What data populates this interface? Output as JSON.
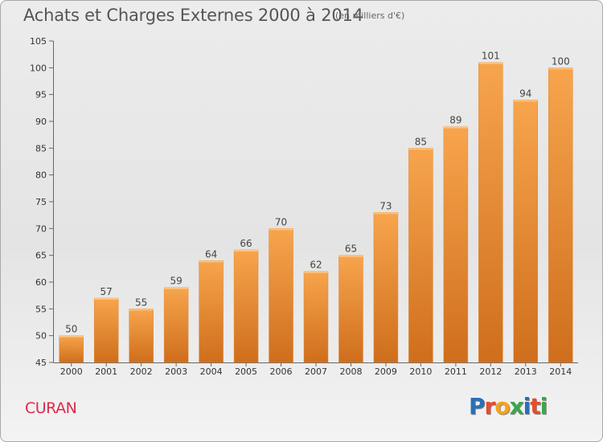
{
  "header": {
    "title": "Achats et Charges Externes 2000 à 2014",
    "unit": "(en milliers d'€)"
  },
  "commune": "CURAN",
  "logo": {
    "text": "Proxiti",
    "letters": [
      {
        "char": "P",
        "color": "#2a6fb8"
      },
      {
        "char": "r",
        "color": "#e94b2b"
      },
      {
        "char": "o",
        "color": "#f6a21a"
      },
      {
        "char": "x",
        "color": "#3aa84a"
      },
      {
        "char": "i",
        "color": "#2a6fb8"
      },
      {
        "char": "t",
        "color": "#e94b2b"
      },
      {
        "char": "i",
        "color": "#3aa84a"
      }
    ]
  },
  "colors": {
    "bar_light": "#f7a54d",
    "bar_dark": "#cf6e1c",
    "commune_text": "#e0294a"
  },
  "chart_data": {
    "type": "bar",
    "title": "Achats et Charges Externes 2000 à 2014",
    "subtitle": "(en milliers d'€)",
    "categories": [
      "2000",
      "2001",
      "2002",
      "2003",
      "2004",
      "2005",
      "2006",
      "2007",
      "2008",
      "2009",
      "2010",
      "2011",
      "2012",
      "2013",
      "2014"
    ],
    "values": [
      50,
      57,
      55,
      59,
      64,
      66,
      70,
      62,
      65,
      73,
      85,
      89,
      101,
      94,
      100
    ],
    "ylim": [
      45,
      105
    ],
    "yticks": [
      45,
      50,
      55,
      60,
      65,
      70,
      75,
      80,
      85,
      90,
      95,
      100,
      105
    ],
    "grid": false,
    "legend": "none"
  }
}
